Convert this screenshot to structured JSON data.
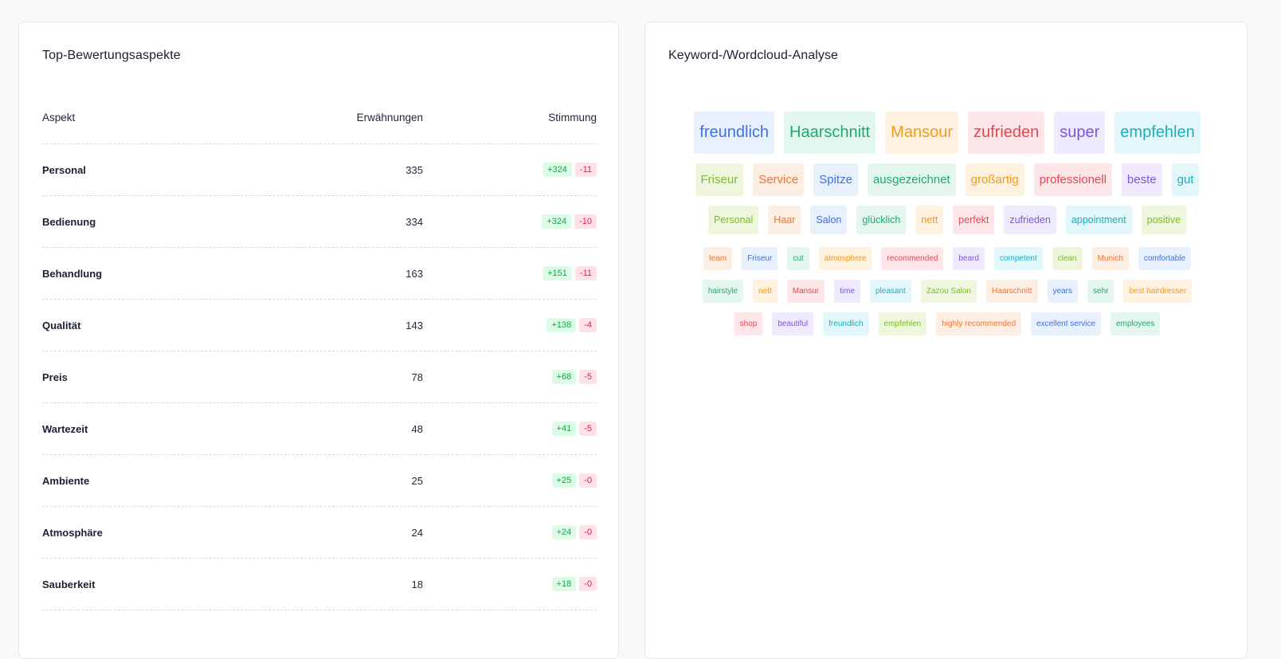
{
  "aspects_panel": {
    "title": "Top-Bewertungsaspekte",
    "columns": {
      "aspect": "Aspekt",
      "mentions": "Erwähnungen",
      "sentiment": "Stimmung"
    },
    "rows": [
      {
        "aspect": "Personal",
        "mentions": "335",
        "positive": "+324",
        "negative": "-11"
      },
      {
        "aspect": "Bedienung",
        "mentions": "334",
        "positive": "+324",
        "negative": "-10"
      },
      {
        "aspect": "Behandlung",
        "mentions": "163",
        "positive": "+151",
        "negative": "-11"
      },
      {
        "aspect": "Qualität",
        "mentions": "143",
        "positive": "+138",
        "negative": "-4"
      },
      {
        "aspect": "Preis",
        "mentions": "78",
        "positive": "+68",
        "negative": "-5"
      },
      {
        "aspect": "Wartezeit",
        "mentions": "48",
        "positive": "+41",
        "negative": "-5"
      },
      {
        "aspect": "Ambiente",
        "mentions": "25",
        "positive": "+25",
        "negative": "-0"
      },
      {
        "aspect": "Atmosphäre",
        "mentions": "24",
        "positive": "+24",
        "negative": "-0"
      },
      {
        "aspect": "Sauberkeit",
        "mentions": "18",
        "positive": "+18",
        "negative": "-0"
      }
    ]
  },
  "wordcloud_panel": {
    "title": "Keyword-/Wordcloud-Analyse",
    "colors": {
      "blue": "#3b73e0",
      "green": "#1faa6c",
      "orange": "#f09a1b",
      "red": "#e64553",
      "purple": "#7b55df",
      "teal": "#1aafbf",
      "lime": "#7bbd24",
      "coral": "#ee7434"
    },
    "rows": [
      {
        "size": 1,
        "words": [
          {
            "text": "freundlich",
            "color": "blue"
          },
          {
            "text": "Haarschnitt",
            "color": "green"
          },
          {
            "text": "Mansour",
            "color": "orange"
          },
          {
            "text": "zufrieden",
            "color": "red"
          },
          {
            "text": "super",
            "color": "purple"
          },
          {
            "text": "empfehlen",
            "color": "teal"
          }
        ]
      },
      {
        "size": 2,
        "words": [
          {
            "text": "Friseur",
            "color": "lime"
          },
          {
            "text": "Service",
            "color": "coral"
          },
          {
            "text": "Spitze",
            "color": "blue"
          },
          {
            "text": "ausgezeichnet",
            "color": "green"
          },
          {
            "text": "großartig",
            "color": "orange"
          },
          {
            "text": "professionell",
            "color": "red"
          },
          {
            "text": "beste",
            "color": "purple"
          },
          {
            "text": "gut",
            "color": "teal"
          }
        ]
      },
      {
        "size": 3,
        "words": [
          {
            "text": "Personal",
            "color": "lime"
          },
          {
            "text": "Haar",
            "color": "coral"
          },
          {
            "text": "Salon",
            "color": "blue"
          },
          {
            "text": "glücklich",
            "color": "green"
          },
          {
            "text": "nett",
            "color": "orange"
          },
          {
            "text": "perfekt",
            "color": "red"
          },
          {
            "text": "zufrieden",
            "color": "purple"
          },
          {
            "text": "appointment",
            "color": "teal"
          },
          {
            "text": "positive",
            "color": "lime"
          }
        ]
      },
      {
        "size": 4,
        "words": [
          {
            "text": "team",
            "color": "coral"
          },
          {
            "text": "Friseur",
            "color": "blue"
          },
          {
            "text": "cut",
            "color": "green"
          },
          {
            "text": "atmosphere",
            "color": "orange"
          },
          {
            "text": "recommended",
            "color": "red"
          },
          {
            "text": "beard",
            "color": "purple"
          },
          {
            "text": "competent",
            "color": "teal"
          },
          {
            "text": "clean",
            "color": "lime"
          },
          {
            "text": "Munich",
            "color": "coral"
          },
          {
            "text": "comfortable",
            "color": "blue"
          }
        ]
      },
      {
        "size": 5,
        "words": [
          {
            "text": "hairstyle",
            "color": "green"
          },
          {
            "text": "nett",
            "color": "orange"
          },
          {
            "text": "Mansur",
            "color": "red"
          },
          {
            "text": "time",
            "color": "purple"
          },
          {
            "text": "pleasant",
            "color": "teal"
          },
          {
            "text": "Zazou Salon",
            "color": "lime"
          },
          {
            "text": "Haarschnitt",
            "color": "coral"
          },
          {
            "text": "years",
            "color": "blue"
          },
          {
            "text": "sehr",
            "color": "green"
          },
          {
            "text": "best hairdresser",
            "color": "orange"
          }
        ]
      },
      {
        "size": 5,
        "words": [
          {
            "text": "shop",
            "color": "red"
          },
          {
            "text": "beautiful",
            "color": "purple"
          },
          {
            "text": "freundlich",
            "color": "teal"
          },
          {
            "text": "empfehlen",
            "color": "lime"
          },
          {
            "text": "highly recommended",
            "color": "coral"
          },
          {
            "text": "excellent service",
            "color": "blue"
          },
          {
            "text": "employees",
            "color": "green"
          }
        ]
      }
    ]
  }
}
